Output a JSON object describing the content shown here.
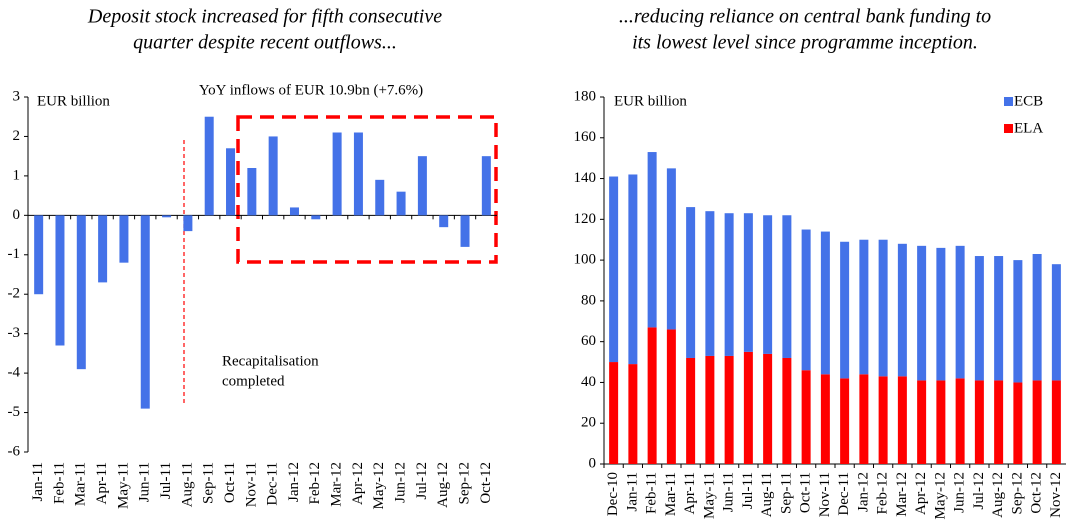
{
  "chart_data": [
    {
      "type": "bar",
      "title": [
        "Deposit stock increased for fifth consecutive",
        "quarter despite recent outflows..."
      ],
      "annotations": [
        "EUR billion",
        "YoY inflows of EUR 10.9bn (+7.6%)",
        "Recapitalisation",
        "completed"
      ],
      "categories": [
        "Jan-11",
        "Feb-11",
        "Mar-11",
        "Apr-11",
        "May-11",
        "Jun-11",
        "Jul-11",
        "Aug-11",
        "Sep-11",
        "Oct-11",
        "Nov-11",
        "Dec-11",
        "Jan-12",
        "Feb-12",
        "Mar-12",
        "Apr-12",
        "May-12",
        "Jun-12",
        "Jul-12",
        "Aug-12",
        "Sep-12",
        "Oct-12"
      ],
      "values": [
        -2.0,
        -3.3,
        -3.9,
        -1.7,
        -1.2,
        -4.9,
        -0.05,
        -0.4,
        2.5,
        1.7,
        1.2,
        2.0,
        0.2,
        -0.1,
        2.1,
        2.1,
        0.9,
        0.6,
        1.5,
        -0.3,
        -0.8,
        1.5
      ],
      "color": "#4472e8",
      "ylim": [
        -6,
        3
      ],
      "yticks": [
        -6,
        -5,
        -4,
        -3,
        -2,
        -1,
        0,
        1,
        2,
        3
      ]
    },
    {
      "type": "stacked_bar",
      "title": [
        "...reducing reliance on central bank funding to",
        "its lowest level since programme inception."
      ],
      "annotations": [
        "EUR billion"
      ],
      "categories": [
        "Dec-10",
        "Jan-11",
        "Feb-11",
        "Mar-11",
        "Apr-11",
        "May-11",
        "Jun-11",
        "Jul-11",
        "Aug-11",
        "Sep-11",
        "Oct-11",
        "Nov-11",
        "Dec-11",
        "Jan-12",
        "Feb-12",
        "Mar-12",
        "Apr-12",
        "May-12",
        "Jun-12",
        "Jul-12",
        "Aug-12",
        "Sep-12",
        "Oct-12",
        "Nov-12"
      ],
      "series": [
        {
          "name": "ECB",
          "color": "#4472e8",
          "values": [
            91,
            93,
            86,
            79,
            74,
            71,
            70,
            68,
            68,
            70,
            69,
            70,
            67,
            66,
            67,
            65,
            66,
            65,
            65,
            61,
            61,
            60,
            62,
            57
          ]
        },
        {
          "name": "ELA",
          "color": "#ff0000",
          "values": [
            50,
            49,
            67,
            66,
            52,
            53,
            53,
            55,
            54,
            52,
            46,
            44,
            42,
            44,
            43,
            43,
            41,
            41,
            42,
            41,
            41,
            40,
            41,
            41
          ]
        }
      ],
      "ylim": [
        0,
        180
      ],
      "yticks": [
        0,
        20,
        40,
        60,
        80,
        100,
        120,
        140,
        160,
        180
      ],
      "legend": "top-right"
    }
  ]
}
